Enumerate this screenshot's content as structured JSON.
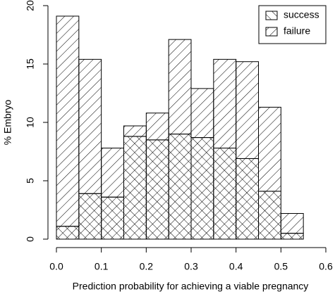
{
  "chart_data": {
    "type": "histogram",
    "x_label": "Prediction probability for achieving a viable pregnancy",
    "y_label": "% Embryo",
    "bins": [
      0,
      0.05,
      0.1,
      0.15,
      0.2,
      0.25,
      0.3,
      0.35,
      0.4,
      0.45,
      0.5,
      0.55
    ],
    "series": [
      {
        "name": "success",
        "color": "#000000",
        "values": [
          1.1,
          3.9,
          3.6,
          8.8,
          8.5,
          9.0,
          8.7,
          7.8,
          6.9,
          4.1,
          0.5
        ]
      },
      {
        "name": "failure",
        "color": "#000000",
        "values": [
          18.0,
          11.5,
          4.2,
          0.9,
          2.3,
          8.1,
          4.2,
          7.6,
          8.3,
          7.2,
          1.7
        ]
      }
    ],
    "xlim": [
      0,
      0.6
    ],
    "xticks": [
      {
        "value": 0,
        "label": "0.0"
      },
      0.1,
      0.2,
      0.3,
      0.4,
      0.5,
      0.6
    ],
    "ylim": [
      0,
      20
    ],
    "yticks": [
      0,
      5,
      10,
      15,
      20
    ],
    "legend": "top-right"
  }
}
